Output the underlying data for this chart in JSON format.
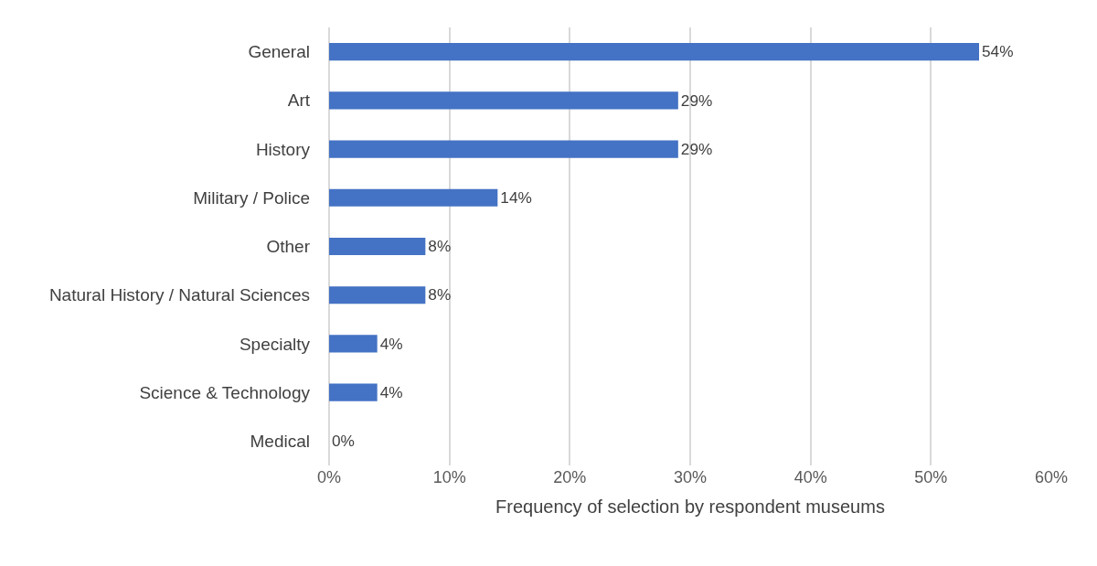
{
  "chart_data": {
    "type": "bar",
    "orientation": "horizontal",
    "xlabel": "Frequency of selection by respondent museums",
    "categories": [
      "General",
      "Art",
      "History",
      "Military / Police",
      "Other",
      "Natural History / Natural Sciences",
      "Specialty",
      "Science & Technology",
      "Medical"
    ],
    "values": [
      54,
      29,
      29,
      14,
      8,
      8,
      4,
      4,
      0
    ],
    "value_labels": [
      "54%",
      "29%",
      "29%",
      "14%",
      "8%",
      "8%",
      "4%",
      "4%",
      "0%"
    ],
    "color": "#4472c4",
    "xlim": [
      0,
      60
    ],
    "xticks": [
      {
        "value": 0,
        "label": "0%"
      },
      {
        "value": 10,
        "label": "10%"
      },
      {
        "value": 20,
        "label": "20%"
      },
      {
        "value": 30,
        "label": "30%"
      },
      {
        "value": 40,
        "label": "40%"
      },
      {
        "value": 50,
        "label": "50%"
      },
      {
        "value": 60,
        "label": "60%"
      }
    ],
    "grid": "x"
  }
}
